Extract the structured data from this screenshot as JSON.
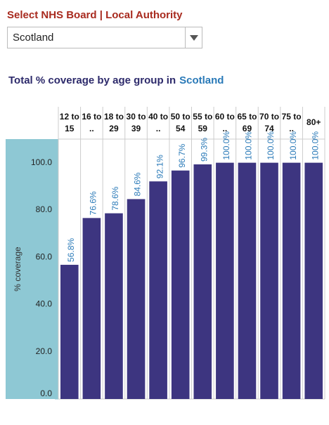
{
  "filter": {
    "label": "Select NHS Board | Local Authority",
    "selected": "Scotland"
  },
  "chart_data": {
    "type": "bar",
    "title": "Total % coverage by age group in",
    "title_highlight": "Scotland",
    "y_label": "% coverage",
    "categories": [
      "12 to 15",
      "16 to ..",
      "18 to 29",
      "30 to 39",
      "40 to ..",
      "50 to 54",
      "55 to 59",
      "60 to ..",
      "65 to 69",
      "70 to 74",
      "75 to ..",
      "80+"
    ],
    "values": [
      56.8,
      76.6,
      78.6,
      84.6,
      92.1,
      96.7,
      99.3,
      100.0,
      100.0,
      100.0,
      100.0,
      100.0
    ],
    "value_labels": [
      "56.8%",
      "76.6%",
      "78.6%",
      "84.6%",
      "92.1%",
      "96.7%",
      "99.3%",
      "100.0%",
      "100.0%",
      "100.0%",
      "100.0%",
      "100.0%"
    ],
    "color": "#3d3580",
    "ylim": [
      0,
      110
    ],
    "yticks": [
      {
        "value": 0,
        "label": "0.0"
      },
      {
        "value": 20,
        "label": "20.0"
      },
      {
        "value": 40,
        "label": "40.0"
      },
      {
        "value": 60,
        "label": "60.0"
      },
      {
        "value": 80,
        "label": "80.0"
      },
      {
        "value": 100,
        "label": "100.0"
      }
    ]
  }
}
